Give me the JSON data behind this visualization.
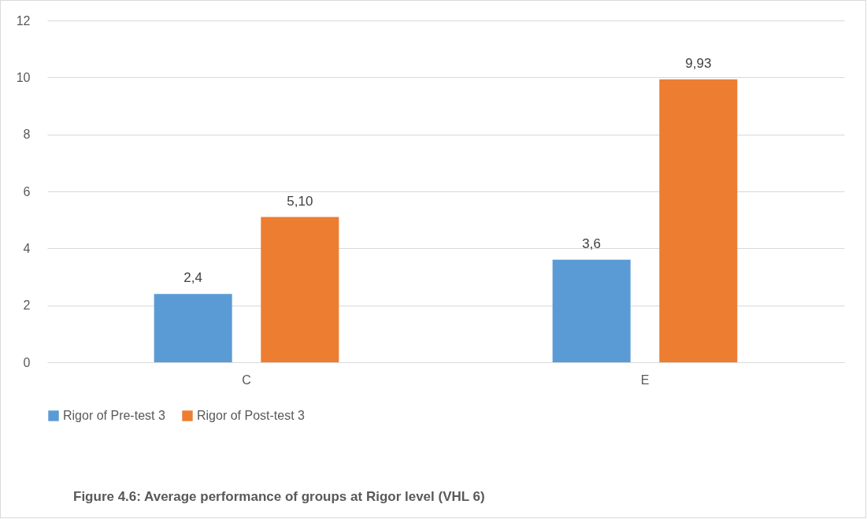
{
  "chart_data": {
    "type": "bar",
    "categories": [
      "C",
      "E"
    ],
    "series": [
      {
        "name": "Rigor of Pre-test 3",
        "color": "#5b9bd5",
        "values": [
          2.4,
          3.6
        ],
        "value_labels": [
          "2,4",
          "3,6"
        ]
      },
      {
        "name": "Rigor of Post-test 3",
        "color": "#ed7d31",
        "values": [
          5.1,
          9.93
        ],
        "value_labels": [
          "5,10",
          "9,93"
        ]
      }
    ],
    "ylim": [
      0,
      12
    ],
    "yticks": [
      0,
      2,
      4,
      6,
      8,
      10,
      12
    ],
    "grid": "y",
    "legend": "bottom",
    "annotations": [
      "Figure 4.6: Average performance of groups at Rigor level (VHL 6)"
    ]
  }
}
